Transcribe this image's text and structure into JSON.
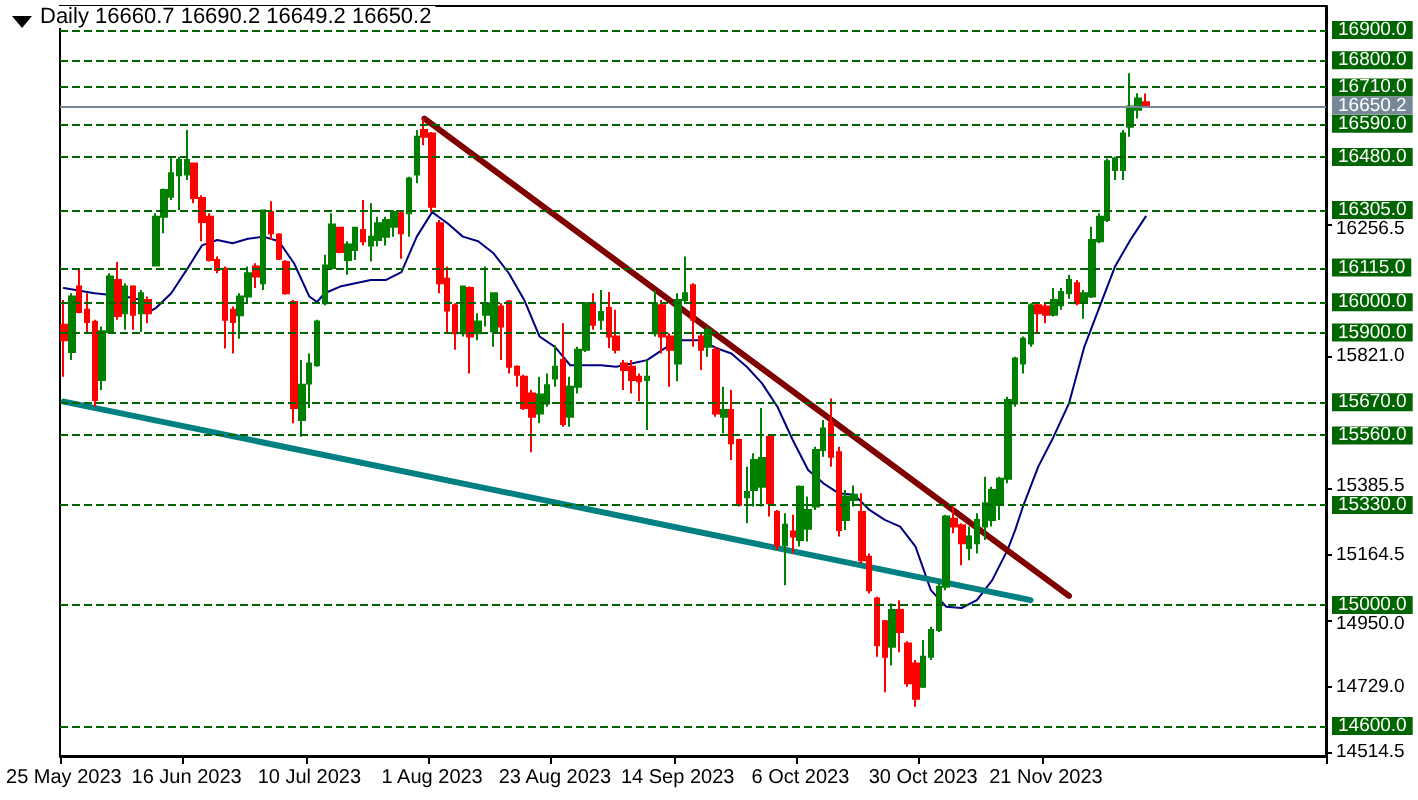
{
  "chart_data": {
    "type": "candlestick",
    "title": "Daily 16660.7 16690.2 16649.2 16650.2",
    "categories": [
      "25 May 2023",
      null,
      null,
      null,
      null,
      null,
      null,
      null,
      null,
      null,
      null,
      null,
      null,
      null,
      null,
      null,
      "16 Jun 2023",
      null,
      null,
      null,
      null,
      null,
      null,
      null,
      null,
      null,
      null,
      null,
      null,
      null,
      null,
      null,
      "10 Jul 2023",
      null,
      null,
      null,
      null,
      null,
      null,
      null,
      null,
      null,
      null,
      null,
      null,
      null,
      null,
      null,
      "1 Aug 2023",
      null,
      null,
      null,
      null,
      null,
      null,
      null,
      null,
      null,
      null,
      null,
      null,
      null,
      null,
      null,
      "23 Aug 2023",
      null,
      null,
      null,
      null,
      null,
      null,
      null,
      null,
      null,
      null,
      null,
      null,
      null,
      null,
      null,
      "14 Sep 2023",
      null,
      null,
      null,
      null,
      null,
      null,
      null,
      null,
      null,
      null,
      null,
      null,
      null,
      null,
      null,
      "6 Oct 2023",
      null,
      null,
      null,
      null,
      null,
      null,
      null,
      null,
      null,
      null,
      null,
      null,
      null,
      null,
      null,
      "30 Oct 2023",
      null,
      null,
      null,
      null,
      null,
      null,
      null,
      null,
      null,
      null,
      null,
      null,
      null,
      null,
      null,
      "21 Nov 2023",
      null,
      null,
      null,
      null,
      null,
      null,
      null,
      null,
      null,
      null,
      null,
      null,
      null
    ],
    "ylim": [
      14501,
      16979
    ],
    "yticks": [
      16256.5,
      {
        "value": 15821,
        "label": "15821.0"
      },
      15385.5,
      15164.5,
      {
        "value": 14950,
        "label": "14950.0"
      },
      {
        "value": 14729,
        "label": "14729.0"
      },
      14514.5
    ],
    "marker": "none",
    "series": [
      {
        "type": "candlestick",
        "ohlc": [
          [
            15926,
            16008,
            15754,
            15875
          ],
          [
            15836,
            16030,
            15809,
            16019
          ],
          [
            16052,
            16107,
            15964,
            15968
          ],
          [
            15975,
            16030,
            15902,
            15935
          ],
          [
            15935,
            15942,
            15655,
            15677
          ],
          [
            15743,
            15920,
            15710,
            15904
          ],
          [
            15902,
            16096,
            15898,
            16085
          ],
          [
            16074,
            16133,
            15942,
            15955
          ],
          [
            15964,
            16063,
            15909,
            16052
          ],
          [
            16052,
            16056,
            15909,
            15959
          ],
          [
            15964,
            16041,
            15902,
            16030
          ],
          [
            16008,
            16019,
            15931,
            15964
          ],
          [
            16122,
            16294,
            16118,
            16283
          ],
          [
            16283,
            16376,
            16228,
            16371
          ],
          [
            16349,
            16481,
            16338,
            16426
          ],
          [
            16420,
            16481,
            16305,
            16470
          ],
          [
            16422,
            16569,
            16404,
            16470
          ],
          [
            16459,
            16459,
            16327,
            16345
          ],
          [
            16345,
            16354,
            16202,
            16265
          ],
          [
            16283,
            16294,
            16135,
            16140
          ],
          [
            16140,
            16151,
            16096,
            16107
          ],
          [
            16111,
            16118,
            15847,
            15942
          ],
          [
            15975,
            15986,
            15831,
            15935
          ],
          [
            15957,
            16030,
            15880,
            16019
          ],
          [
            16019,
            16118,
            15997,
            16096
          ],
          [
            16118,
            16129,
            16047,
            16085
          ],
          [
            16063,
            16303,
            16041,
            16303
          ],
          [
            16298,
            16334,
            16206,
            16228
          ],
          [
            16224,
            16228,
            16140,
            16144
          ],
          [
            16133,
            16140,
            16025,
            16030
          ],
          [
            16001,
            16008,
            15600,
            15651
          ],
          [
            15611,
            15809,
            15556,
            15728
          ],
          [
            15732,
            15831,
            15651,
            15798
          ],
          [
            15792,
            15942,
            15787,
            15937
          ],
          [
            15997,
            16157,
            15990,
            16122
          ],
          [
            16113,
            16294,
            16107,
            16257
          ],
          [
            16246,
            16250,
            16162,
            16166
          ],
          [
            16140,
            16202,
            16091,
            16191
          ],
          [
            16173,
            16250,
            16140,
            16246
          ],
          [
            16239,
            16338,
            16188,
            16202
          ],
          [
            16188,
            16327,
            16135,
            16217
          ],
          [
            16206,
            16283,
            16184,
            16261
          ],
          [
            16217,
            16283,
            16188,
            16272
          ],
          [
            16250,
            16305,
            16217,
            16298
          ],
          [
            16294,
            16298,
            16144,
            16228
          ],
          [
            16294,
            16415,
            16217,
            16409
          ],
          [
            16422,
            16569,
            16393,
            16547
          ],
          [
            16569,
            16607,
            16519,
            16547
          ],
          [
            16558,
            16563,
            16298,
            16316
          ],
          [
            16261,
            16272,
            16030,
            16063
          ],
          [
            16078,
            16118,
            15898,
            15973
          ],
          [
            15990,
            15997,
            15843,
            15898
          ],
          [
            15898,
            16052,
            15887,
            16052
          ],
          [
            16047,
            16052,
            15765,
            15887
          ],
          [
            15898,
            15964,
            15875,
            15937
          ],
          [
            15959,
            16118,
            15920,
            15997
          ],
          [
            15904,
            16030,
            15853,
            16030
          ],
          [
            15986,
            15997,
            15809,
            15920
          ],
          [
            16003,
            16008,
            15765,
            15787
          ],
          [
            15787,
            15792,
            15721,
            15761
          ],
          [
            15754,
            15761,
            15644,
            15651
          ],
          [
            15699,
            15710,
            15505,
            15622
          ],
          [
            15633,
            15754,
            15600,
            15695
          ],
          [
            15666,
            15765,
            15655,
            15726
          ],
          [
            15748,
            15858,
            15721,
            15787
          ],
          [
            15809,
            15931,
            15589,
            15598
          ],
          [
            15622,
            15754,
            15589,
            15721
          ],
          [
            15721,
            15853,
            15699,
            15843
          ],
          [
            15843,
            16001,
            15836,
            15997
          ],
          [
            15997,
            16030,
            15909,
            15926
          ],
          [
            15942,
            16041,
            15909,
            15968
          ],
          [
            15981,
            16034,
            15849,
            15887
          ],
          [
            15887,
            15975,
            15831,
            15843
          ],
          [
            15798,
            15809,
            15710,
            15776
          ],
          [
            15787,
            15809,
            15699,
            15743
          ],
          [
            15754,
            15765,
            15673,
            15739
          ],
          [
            15743,
            15809,
            15578,
            15754
          ],
          [
            15898,
            16041,
            15887,
            15997
          ],
          [
            15990,
            16008,
            15831,
            15887
          ],
          [
            15887,
            15898,
            15721,
            15843
          ],
          [
            15798,
            16030,
            15739,
            16008
          ],
          [
            16008,
            16151,
            15997,
            16030
          ],
          [
            16056,
            16063,
            15853,
            15942
          ],
          [
            15887,
            15898,
            15776,
            15843
          ],
          [
            15853,
            15920,
            15820,
            15909
          ],
          [
            15843,
            15853,
            15622,
            15633
          ],
          [
            15622,
            15721,
            15567,
            15644
          ],
          [
            15644,
            15710,
            15479,
            15534
          ],
          [
            15545,
            15549,
            15325,
            15331
          ],
          [
            15356,
            15457,
            15270,
            15373
          ],
          [
            15380,
            15501,
            15325,
            15479
          ],
          [
            15391,
            15651,
            15325,
            15486
          ],
          [
            15556,
            15563,
            15292,
            15336
          ],
          [
            15307,
            15314,
            15182,
            15197
          ],
          [
            15197,
            15303,
            15065,
            15265
          ],
          [
            15243,
            15298,
            15170,
            15226
          ],
          [
            15215,
            15395,
            15193,
            15391
          ],
          [
            15252,
            15358,
            15210,
            15314
          ],
          [
            15325,
            15523,
            15314,
            15512
          ],
          [
            15512,
            15611,
            15490,
            15583
          ],
          [
            15600,
            15682,
            15457,
            15490
          ],
          [
            15505,
            15523,
            15226,
            15248
          ],
          [
            15281,
            15380,
            15248,
            15358
          ],
          [
            15347,
            15395,
            15325,
            15364
          ],
          [
            15307,
            15369,
            15137,
            15148
          ],
          [
            15159,
            15170,
            15038,
            15049
          ],
          [
            15021,
            15027,
            14829,
            14867
          ],
          [
            14946,
            14950,
            14712,
            14829
          ],
          [
            14862,
            15005,
            14800,
            14983
          ],
          [
            14983,
            15016,
            14844,
            14911
          ],
          [
            14873,
            14880,
            14730,
            14741
          ],
          [
            14807,
            14818,
            14664,
            14690
          ],
          [
            14730,
            14884,
            14726,
            14829
          ],
          [
            14829,
            14928,
            14818,
            14917
          ],
          [
            14917,
            15071,
            14911,
            15060
          ],
          [
            15060,
            15298,
            15049,
            15292
          ],
          [
            15285,
            15325,
            15237,
            15259
          ],
          [
            15263,
            15270,
            15131,
            15204
          ],
          [
            15188,
            15259,
            15148,
            15226
          ],
          [
            15204,
            15303,
            15170,
            15281
          ],
          [
            15259,
            15424,
            15215,
            15336
          ],
          [
            15281,
            15391,
            15259,
            15380
          ],
          [
            15336,
            15424,
            15281,
            15417
          ],
          [
            15417,
            15688,
            15402,
            15677
          ],
          [
            15666,
            15820,
            15655,
            15814
          ],
          [
            15798,
            15887,
            15765,
            15880
          ],
          [
            15864,
            15997,
            15853,
            15990
          ],
          [
            15990,
            15997,
            15902,
            15964
          ],
          [
            15986,
            15997,
            15931,
            15959
          ],
          [
            15959,
            16047,
            15953,
            16008
          ],
          [
            15990,
            16047,
            15975,
            16034
          ],
          [
            16030,
            16091,
            16012,
            16074
          ],
          [
            16063,
            16074,
            15990,
            15997
          ],
          [
            16003,
            16041,
            15946,
            16030
          ],
          [
            16019,
            16250,
            16014,
            16206
          ],
          [
            16202,
            16294,
            16195,
            16283
          ],
          [
            16272,
            16475,
            16265,
            16466
          ],
          [
            16437,
            16481,
            16404,
            16475
          ],
          [
            16437,
            16569,
            16404,
            16558
          ],
          [
            16580,
            16757,
            16547,
            16647
          ],
          [
            16636,
            16691,
            16607,
            16673
          ],
          [
            16660.7,
            16690.2,
            16649.2,
            16650.2
          ]
        ],
        "colors": [
          "#ff0000",
          "#008000",
          "#ff0000",
          "#ff0000",
          "#ff0000",
          "#008000",
          "#008000",
          "#ff0000",
          "#008000",
          "#ff0000",
          "#008000",
          "#ff0000",
          "#008000",
          "#008000",
          "#008000",
          "#008000",
          "#008000",
          "#ff0000",
          "#ff0000",
          "#ff0000",
          "#ff0000",
          "#ff0000",
          "#ff0000",
          "#008000",
          "#008000",
          "#ff0000",
          "#008000",
          "#ff0000",
          "#ff0000",
          "#ff0000",
          "#ff0000",
          "#008000",
          "#008000",
          "#008000",
          "#008000",
          "#008000",
          "#ff0000",
          "#008000",
          "#008000",
          "#ff0000",
          "#008000",
          "#008000",
          "#008000",
          "#008000",
          "#ff0000",
          "#008000",
          "#008000",
          "#ff0000",
          "#ff0000",
          "#ff0000",
          "#ff0000",
          "#ff0000",
          "#008000",
          "#ff0000",
          "#008000",
          "#008000",
          "#008000",
          "#ff0000",
          "#ff0000",
          "#ff0000",
          "#ff0000",
          "#ff0000",
          "#008000",
          "#008000",
          "#008000",
          "#ff0000",
          "#008000",
          "#008000",
          "#008000",
          "#ff0000",
          "#008000",
          "#ff0000",
          "#ff0000",
          "#ff0000",
          "#ff0000",
          "#ff0000",
          "#008000",
          "#008000",
          "#ff0000",
          "#ff0000",
          "#008000",
          "#008000",
          "#ff0000",
          "#ff0000",
          "#008000",
          "#ff0000",
          "#008000",
          "#ff0000",
          "#ff0000",
          "#008000",
          "#008000",
          "#008000",
          "#ff0000",
          "#ff0000",
          "#008000",
          "#ff0000",
          "#008000",
          "#008000",
          "#008000",
          "#008000",
          "#ff0000",
          "#ff0000",
          "#008000",
          "#008000",
          "#ff0000",
          "#ff0000",
          "#ff0000",
          "#ff0000",
          "#008000",
          "#ff0000",
          "#ff0000",
          "#ff0000",
          "#008000",
          "#008000",
          "#008000",
          "#008000",
          "#ff0000",
          "#ff0000",
          "#008000",
          "#008000",
          "#008000",
          "#008000",
          "#008000",
          "#008000",
          "#008000",
          "#008000",
          "#008000",
          "#ff0000",
          "#ff0000",
          "#008000",
          "#008000",
          "#008000",
          "#ff0000",
          "#008000",
          "#008000",
          "#008000",
          "#008000",
          "#008000",
          "#008000",
          "#008000",
          "#008000",
          "#ff0000"
        ]
      },
      {
        "type": "line",
        "color": "#000080",
        "values": [
          16047,
          null,
          null,
          null,
          16030,
          null,
          null,
          null,
          16019,
          null,
          16008,
          15968,
          15981,
          null,
          16030,
          null,
          16107,
          null,
          16188,
          null,
          16206,
          null,
          16195,
          null,
          16210,
          null,
          16217,
          null,
          16202,
          null,
          16129,
          null,
          16019,
          16001,
          16030,
          null,
          16052,
          null,
          16063,
          null,
          16074,
          null,
          16074,
          null,
          16100,
          null,
          16217,
          null,
          16298,
          null,
          16261,
          null,
          16217,
          null,
          16202,
          null,
          16162,
          null,
          16096,
          null,
          16008,
          null,
          15887,
          null,
          15853,
          null,
          15792,
          null,
          15792,
          null,
          15792,
          null,
          15787,
          null,
          15798,
          null,
          15809,
          null,
          15843,
          null,
          15875,
          null,
          15875,
          15875,
          null,
          15849,
          null,
          15831,
          null,
          15787,
          null,
          15732,
          null,
          15655,
          null,
          15545,
          null,
          15446,
          null,
          15402,
          null,
          15369,
          null,
          15364,
          null,
          15314,
          null,
          15281,
          null,
          15259,
          null,
          15193,
          null,
          15049,
          null,
          14994,
          null,
          14990,
          null,
          15016,
          null,
          15082,
          null,
          15182,
          15248,
          15325,
          null,
          15457,
          null,
          15556,
          null,
          15666,
          null,
          15853,
          null,
          15986,
          null,
          16118,
          null,
          16206,
          null,
          16283
        ]
      },
      {
        "type": "line",
        "color": "#800000",
        "values": [
          null,
          null,
          null,
          null,
          null,
          null,
          null,
          null,
          null,
          null,
          null,
          null,
          null,
          null,
          null,
          null,
          null,
          null,
          null,
          null,
          null,
          null,
          null,
          null,
          null,
          null,
          null,
          null,
          null,
          null,
          null,
          null,
          null,
          null,
          null,
          null,
          null,
          null,
          null,
          null,
          null,
          null,
          null,
          null,
          null,
          null,
          null,
          16607,
          null,
          null,
          null,
          null,
          null,
          null,
          null,
          null,
          null,
          null,
          null,
          null,
          null,
          null,
          null,
          null,
          null,
          null,
          null,
          null,
          null,
          null,
          null,
          null,
          null,
          null,
          null,
          null,
          null,
          null,
          null,
          null,
          null,
          null,
          null,
          null,
          null,
          null,
          null,
          null,
          null,
          null,
          null,
          null,
          null,
          null,
          null,
          null,
          null,
          null,
          null,
          null,
          null,
          null,
          null,
          null,
          null,
          null,
          null,
          null,
          null,
          null,
          null,
          null,
          null,
          null,
          null,
          null,
          null,
          null,
          null,
          null,
          null,
          null,
          null,
          null,
          null,
          null,
          null,
          null,
          null,
          null,
          null,
          15030,
          null,
          null,
          null,
          null,
          null,
          null,
          null,
          null,
          null,
          null
        ]
      },
      {
        "type": "line",
        "color": "#008080",
        "values": [
          15672,
          null,
          null,
          null,
          null,
          null,
          null,
          null,
          null,
          null,
          null,
          null,
          null,
          null,
          null,
          null,
          null,
          null,
          null,
          null,
          null,
          null,
          null,
          null,
          null,
          null,
          null,
          null,
          null,
          null,
          null,
          null,
          null,
          null,
          null,
          null,
          null,
          null,
          null,
          null,
          null,
          null,
          null,
          null,
          null,
          null,
          null,
          null,
          null,
          null,
          null,
          null,
          null,
          null,
          null,
          null,
          null,
          null,
          null,
          null,
          null,
          null,
          null,
          null,
          null,
          null,
          null,
          null,
          null,
          null,
          null,
          null,
          null,
          null,
          null,
          null,
          null,
          null,
          null,
          null,
          null,
          null,
          null,
          null,
          null,
          null,
          null,
          null,
          null,
          null,
          null,
          null,
          null,
          null,
          null,
          null,
          null,
          null,
          null,
          null,
          null,
          null,
          null,
          null,
          null,
          null,
          null,
          null,
          null,
          null,
          null,
          null,
          null,
          null,
          null,
          null,
          null,
          null,
          null,
          null,
          null,
          null,
          null,
          null,
          null,
          null,
          15016,
          null,
          null,
          null,
          null,
          null,
          null,
          null,
          null,
          null,
          null,
          null,
          null,
          null,
          null,
          null
        ]
      }
    ],
    "ref_lines": [
      {
        "axis": "y",
        "value": 16900,
        "label": "16900.0",
        "color": "#006400",
        "line_style": "dashed"
      },
      {
        "axis": "y",
        "value": 16800,
        "label": "16800.0",
        "color": "#006400",
        "line_style": "dashed"
      },
      {
        "axis": "y",
        "value": 16710,
        "label": "16710.0",
        "color": "#006400",
        "line_style": "dashed"
      },
      {
        "axis": "y",
        "value": 16650.2,
        "label": "16650.2",
        "color": "#778899",
        "line_style": "solid"
      },
      {
        "axis": "y",
        "value": 16590,
        "label": "16590.0",
        "color": "#006400",
        "line_style": "dashed"
      },
      {
        "axis": "y",
        "value": 16480,
        "label": "16480.0",
        "color": "#006400",
        "line_style": "dashed"
      },
      {
        "axis": "y",
        "value": 16305,
        "label": "16305.0",
        "color": "#006400",
        "line_style": "dashed"
      },
      {
        "axis": "y",
        "value": 16115,
        "label": "16115.0",
        "color": "#006400",
        "line_style": "dashed"
      },
      {
        "axis": "y",
        "value": 16000,
        "label": "16000.0",
        "color": "#006400",
        "line_style": "dashed"
      },
      {
        "axis": "y",
        "value": 15900,
        "label": "15900.0",
        "color": "#006400",
        "line_style": "dashed"
      },
      {
        "axis": "y",
        "value": 15670,
        "label": "15670.0",
        "color": "#006400",
        "line_style": "dashed"
      },
      {
        "axis": "y",
        "value": 15560,
        "label": "15560.0",
        "color": "#006400",
        "line_style": "dashed"
      },
      {
        "axis": "y",
        "value": 15330,
        "label": "15330.0",
        "color": "#006400",
        "line_style": "dashed"
      },
      {
        "axis": "y",
        "value": 15000,
        "label": "15000.0",
        "color": "#006400",
        "line_style": "dashed"
      },
      {
        "axis": "y",
        "value": 14600,
        "label": "14600.0",
        "color": "#006400",
        "line_style": "dashed"
      }
    ]
  }
}
